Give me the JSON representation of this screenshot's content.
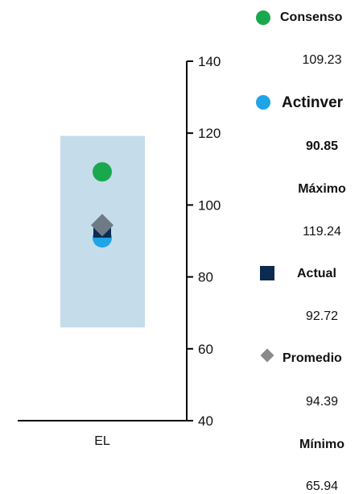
{
  "chart_data": {
    "type": "scatter",
    "categories": [
      "EL"
    ],
    "ylim": [
      40,
      140
    ],
    "yticks": [
      40,
      60,
      80,
      100,
      120,
      140
    ],
    "range_band": {
      "min": 65.94,
      "max": 119.24
    },
    "series": [
      {
        "name": "Consenso",
        "values": [
          109.23
        ],
        "marker": "circle",
        "color": "#1aa84e"
      },
      {
        "name": "Actinver",
        "values": [
          90.85
        ],
        "marker": "circle",
        "color": "#1ea5e6"
      },
      {
        "name": "Actual",
        "values": [
          92.72
        ],
        "marker": "square",
        "color": "#0d2a4f"
      },
      {
        "name": "Promedio",
        "values": [
          94.39
        ],
        "marker": "diamond",
        "color": "#6e7a86"
      }
    ],
    "band_color": "#c5dcea",
    "grid": false,
    "legend_position": "right"
  },
  "legend": {
    "consenso": {
      "label": "Consenso",
      "value": "109.23"
    },
    "actinver": {
      "label": "Actinver",
      "value": "90.85"
    },
    "maximo": {
      "label": "Máximo",
      "value": "119.24"
    },
    "actual": {
      "label": "Actual",
      "value": "92.72"
    },
    "promedio": {
      "label": "Promedio",
      "value": "94.39"
    },
    "minimo": {
      "label": "Mínimo",
      "value": "65.94"
    }
  }
}
